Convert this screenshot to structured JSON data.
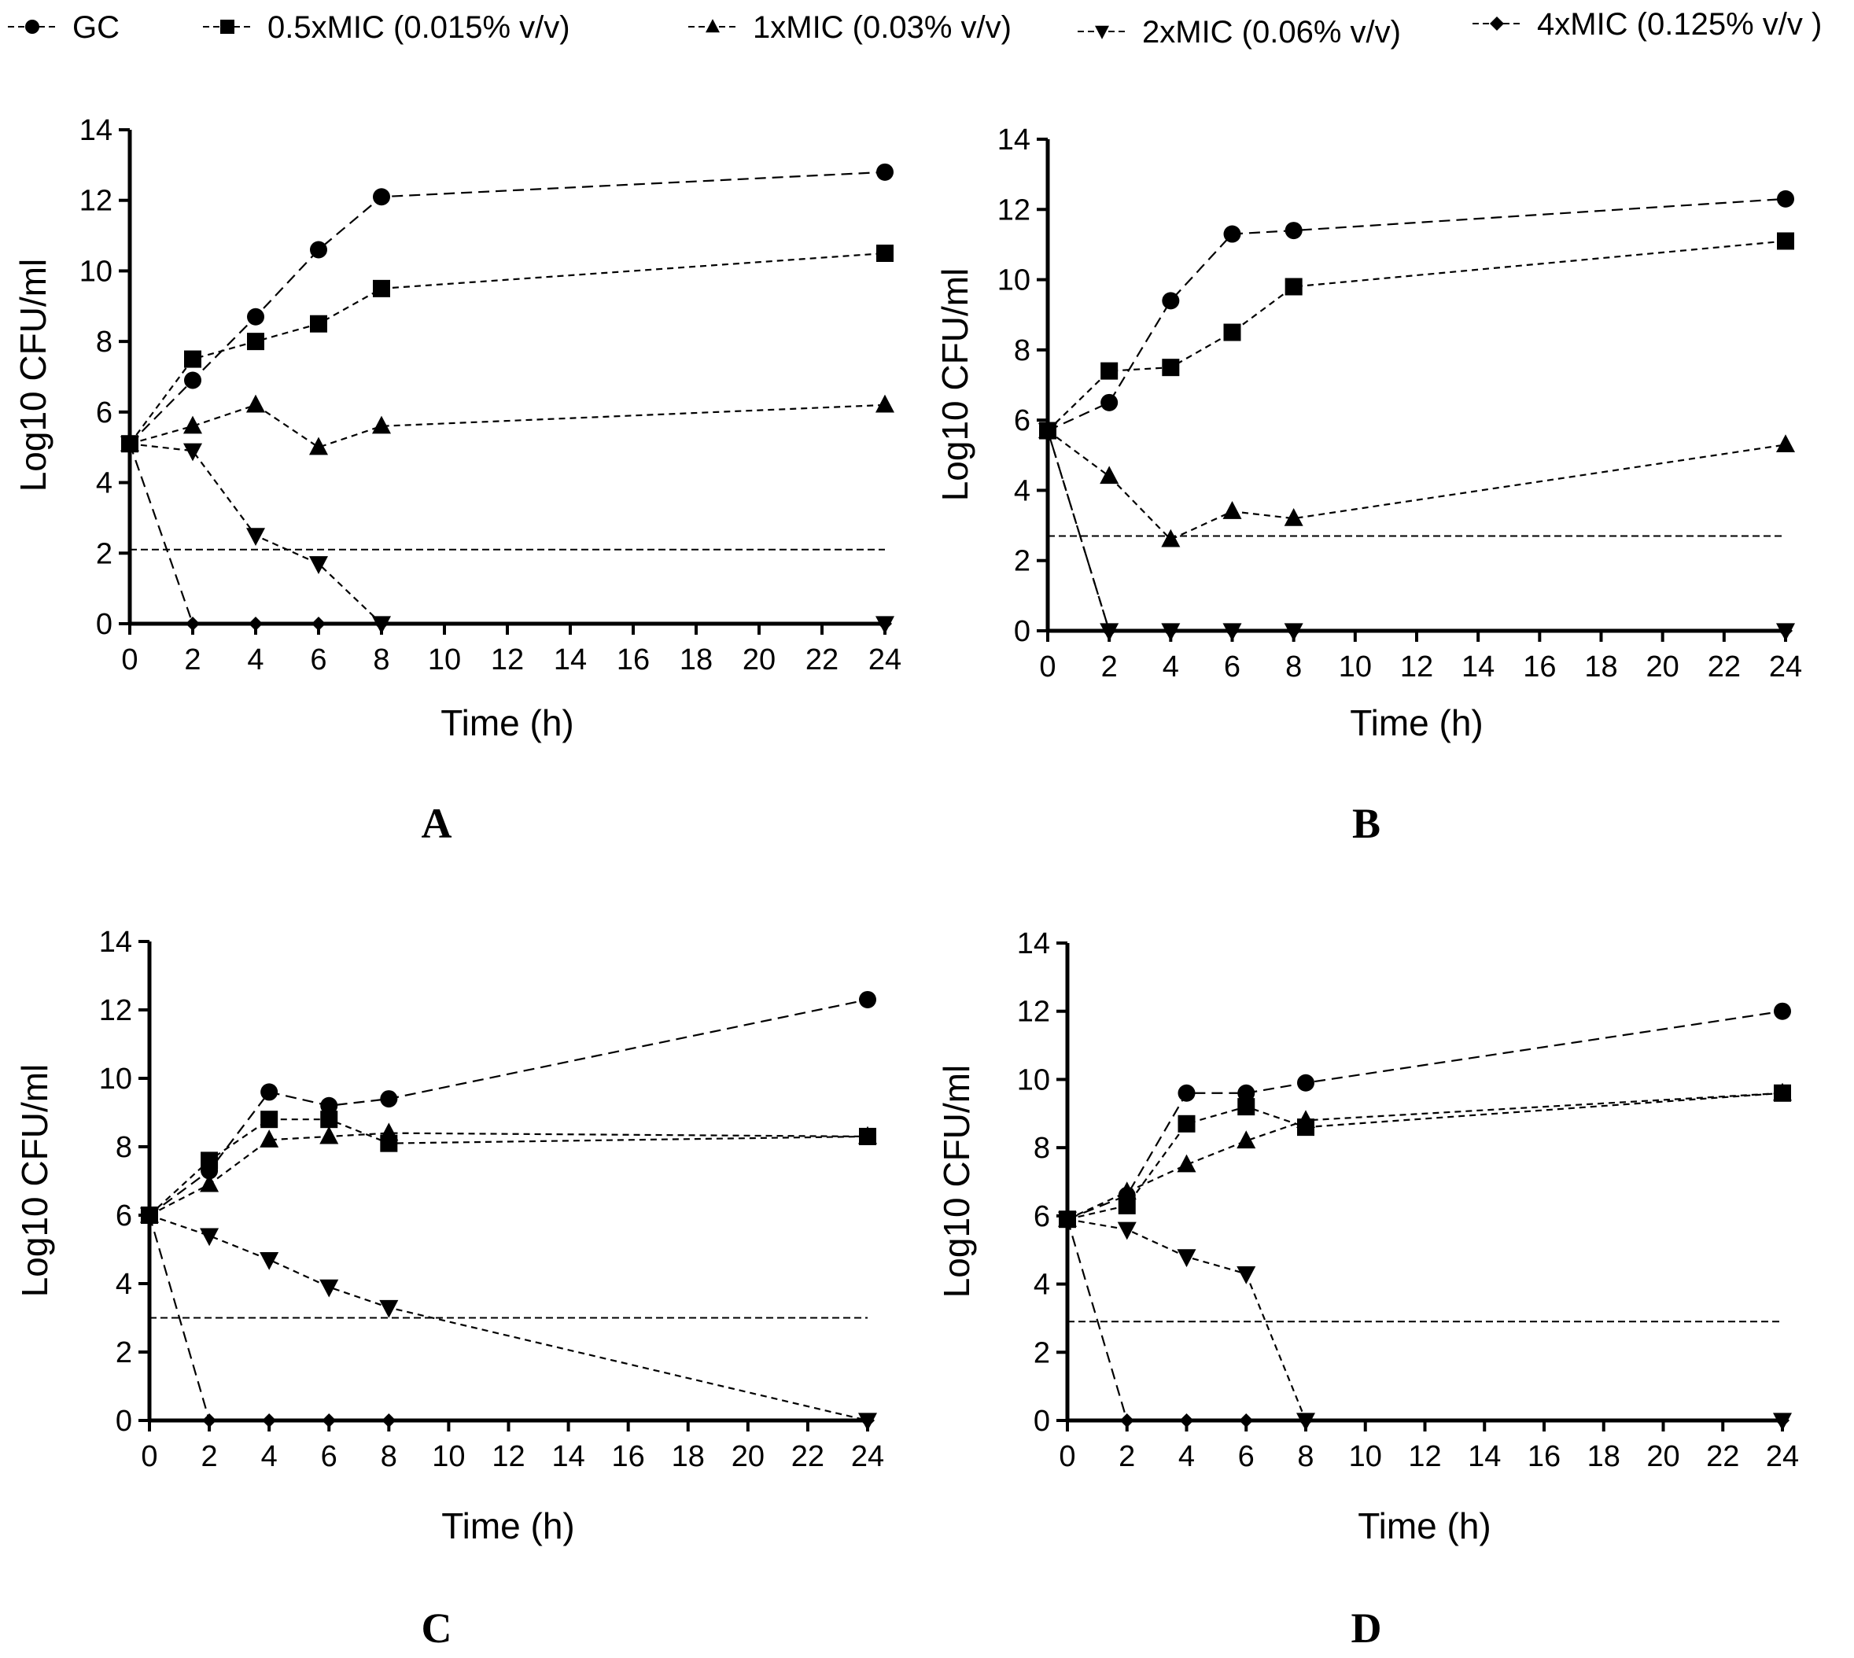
{
  "legend": [
    {
      "key": "gc",
      "label": "GC",
      "marker": "circle"
    },
    {
      "key": "half_mic",
      "label": "0.5xMIC (0.015% v/v)",
      "marker": "square"
    },
    {
      "key": "one_mic",
      "label": "1xMIC (0.03% v/v)",
      "marker": "triangle-up"
    },
    {
      "key": "two_mic",
      "label": "2xMIC (0.06% v/v)",
      "marker": "triangle-down"
    },
    {
      "key": "four_mic",
      "label": "4xMIC (0.125% v/v )",
      "marker": "diamond"
    }
  ],
  "chart_data": [
    {
      "panel": "A",
      "type": "line",
      "xlabel": "Time (h)",
      "ylabel": "Log10 CFU/ml",
      "xlim": [
        0,
        24
      ],
      "ylim": [
        0,
        14
      ],
      "x_ticks": [
        "0",
        "2",
        "4",
        "6",
        "8",
        "10",
        "12",
        "14",
        "16",
        "18",
        "20",
        "22",
        "24"
      ],
      "y_ticks": [
        "0",
        "2",
        "4",
        "6",
        "8",
        "10",
        "12",
        "14"
      ],
      "detection_limit": 2.1,
      "series": [
        {
          "name": "GC",
          "x": [
            0,
            2,
            4,
            6,
            8,
            24
          ],
          "values": [
            5.1,
            6.9,
            8.7,
            10.6,
            12.1,
            12.8
          ]
        },
        {
          "name": "0.5xMIC (0.015% v/v)",
          "x": [
            0,
            2,
            4,
            6,
            8,
            24
          ],
          "values": [
            5.1,
            7.5,
            8.0,
            8.5,
            9.5,
            10.5
          ]
        },
        {
          "name": "1xMIC (0.03% v/v)",
          "x": [
            0,
            2,
            4,
            6,
            8,
            24
          ],
          "values": [
            5.1,
            5.6,
            6.2,
            5.0,
            5.6,
            6.2
          ]
        },
        {
          "name": "2xMIC (0.06% v/v)",
          "x": [
            0,
            2,
            4,
            6,
            8,
            24
          ],
          "values": [
            5.1,
            4.9,
            2.5,
            1.7,
            0,
            0
          ]
        },
        {
          "name": "4xMIC (0.125% v/v )",
          "x": [
            0,
            2,
            4,
            6,
            8,
            24
          ],
          "values": [
            5.1,
            0,
            0,
            0,
            0,
            0
          ]
        }
      ]
    },
    {
      "panel": "B",
      "type": "line",
      "xlabel": "Time (h)",
      "ylabel": "Log10 CFU/ml",
      "xlim": [
        0,
        24
      ],
      "ylim": [
        0,
        14
      ],
      "x_ticks": [
        "0",
        "2",
        "4",
        "6",
        "8",
        "10",
        "12",
        "14",
        "16",
        "18",
        "20",
        "22",
        "24"
      ],
      "y_ticks": [
        "0",
        "2",
        "4",
        "6",
        "8",
        "10",
        "12",
        "14"
      ],
      "detection_limit": 2.7,
      "series": [
        {
          "name": "GC",
          "x": [
            0,
            2,
            4,
            6,
            8,
            24
          ],
          "values": [
            5.7,
            6.5,
            9.4,
            11.3,
            11.4,
            12.3
          ]
        },
        {
          "name": "0.5xMIC (0.015% v/v)",
          "x": [
            0,
            2,
            4,
            6,
            8,
            24
          ],
          "values": [
            5.7,
            7.4,
            7.5,
            8.5,
            9.8,
            11.1
          ]
        },
        {
          "name": "1xMIC (0.03% v/v)",
          "x": [
            0,
            2,
            4,
            6,
            8,
            24
          ],
          "values": [
            5.7,
            4.4,
            2.6,
            3.4,
            3.2,
            5.3
          ]
        },
        {
          "name": "2xMIC (0.06% v/v)",
          "x": [
            0,
            2,
            4,
            6,
            8,
            24
          ],
          "values": [
            5.7,
            0,
            0,
            0,
            0,
            0
          ]
        },
        {
          "name": "4xMIC (0.125% v/v )",
          "x": [
            0,
            2,
            4,
            6,
            8,
            24
          ],
          "values": [
            5.7,
            0,
            0,
            0,
            0,
            0
          ]
        }
      ]
    },
    {
      "panel": "C",
      "type": "line",
      "xlabel": "Time (h)",
      "ylabel": "Log10 CFU/ml",
      "xlim": [
        0,
        24
      ],
      "ylim": [
        0,
        14
      ],
      "x_ticks": [
        "0",
        "2",
        "4",
        "6",
        "8",
        "10",
        "12",
        "14",
        "16",
        "18",
        "20",
        "22",
        "24"
      ],
      "y_ticks": [
        "0",
        "2",
        "4",
        "6",
        "8",
        "10",
        "12",
        "14"
      ],
      "detection_limit": 3.0,
      "series": [
        {
          "name": "GC",
          "x": [
            0,
            2,
            4,
            6,
            8,
            24
          ],
          "values": [
            6.0,
            7.3,
            9.6,
            9.2,
            9.4,
            12.3
          ]
        },
        {
          "name": "0.5xMIC (0.015% v/v)",
          "x": [
            0,
            2,
            4,
            6,
            8,
            24
          ],
          "values": [
            6.0,
            7.6,
            8.8,
            8.8,
            8.1,
            8.3
          ]
        },
        {
          "name": "1xMIC (0.03% v/v)",
          "x": [
            0,
            2,
            4,
            6,
            8,
            24
          ],
          "values": [
            6.0,
            6.9,
            8.2,
            8.3,
            8.4,
            8.3
          ]
        },
        {
          "name": "2xMIC (0.06% v/v)",
          "x": [
            0,
            2,
            4,
            6,
            8,
            24
          ],
          "values": [
            6.0,
            5.4,
            4.7,
            3.9,
            3.3,
            0
          ]
        },
        {
          "name": "4xMIC (0.125% v/v )",
          "x": [
            0,
            2,
            4,
            6,
            8,
            24
          ],
          "values": [
            6.0,
            0,
            0,
            0,
            0,
            0
          ]
        }
      ]
    },
    {
      "panel": "D",
      "type": "line",
      "xlabel": "Time (h)",
      "ylabel": "Log10 CFU/ml",
      "xlim": [
        0,
        24
      ],
      "ylim": [
        0,
        14
      ],
      "x_ticks": [
        "0",
        "2",
        "4",
        "6",
        "8",
        "10",
        "12",
        "14",
        "16",
        "18",
        "20",
        "22",
        "24"
      ],
      "y_ticks": [
        "0",
        "2",
        "4",
        "6",
        "8",
        "10",
        "12",
        "14"
      ],
      "detection_limit": 2.9,
      "series": [
        {
          "name": "GC",
          "x": [
            0,
            2,
            4,
            6,
            8,
            24
          ],
          "values": [
            5.9,
            6.6,
            9.6,
            9.6,
            9.9,
            12.0
          ]
        },
        {
          "name": "0.5xMIC (0.015% v/v)",
          "x": [
            0,
            2,
            4,
            6,
            8,
            24
          ],
          "values": [
            5.9,
            6.3,
            8.7,
            9.2,
            8.6,
            9.6
          ]
        },
        {
          "name": "1xMIC (0.03% v/v)",
          "x": [
            0,
            2,
            4,
            6,
            8,
            24
          ],
          "values": [
            5.9,
            6.7,
            7.5,
            8.2,
            8.8,
            9.6
          ]
        },
        {
          "name": "2xMIC (0.06% v/v)",
          "x": [
            0,
            2,
            4,
            6,
            8,
            24
          ],
          "values": [
            5.9,
            5.6,
            4.8,
            4.3,
            0,
            0
          ]
        },
        {
          "name": "4xMIC (0.125% v/v )",
          "x": [
            0,
            2,
            4,
            6,
            8,
            24
          ],
          "values": [
            5.9,
            0,
            0,
            0,
            0,
            0
          ]
        }
      ]
    }
  ]
}
